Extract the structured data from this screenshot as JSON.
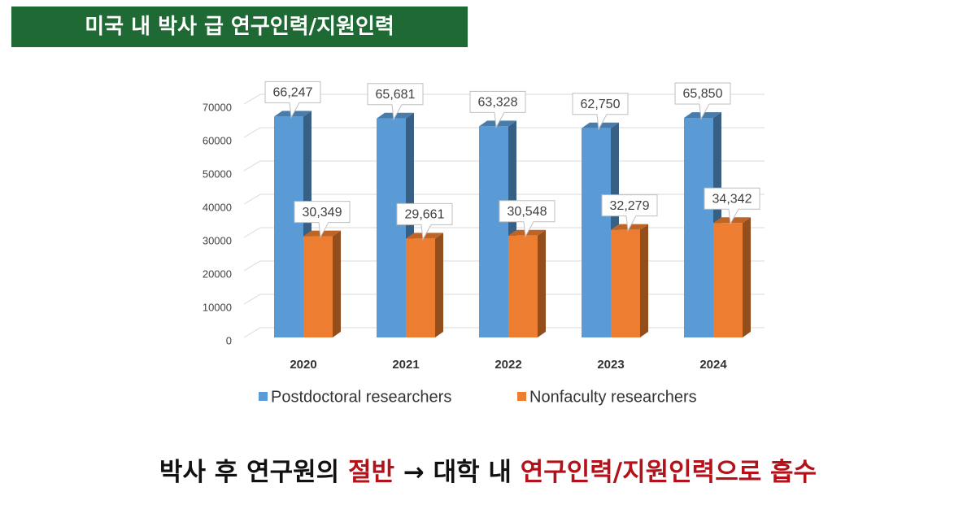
{
  "header": {
    "title": "미국 내 박사 급 연구인력/지원인력"
  },
  "chart_data": {
    "type": "bar3d",
    "categories": [
      "2020",
      "2021",
      "2022",
      "2023",
      "2024"
    ],
    "series": [
      {
        "name": "Postdoctoral researchers",
        "color": "#5b9bd5",
        "values": [
          66247,
          65681,
          63328,
          62750,
          65850
        ],
        "value_labels": [
          "66,247",
          "65,681",
          "63,328",
          "62,750",
          "65,850"
        ]
      },
      {
        "name": "Nonfaculty researchers",
        "color": "#ed7d31",
        "values": [
          30349,
          29661,
          30548,
          32279,
          34342
        ],
        "value_labels": [
          "30,349",
          "29,661",
          "30,548",
          "32,279",
          "34,342"
        ]
      }
    ],
    "ylim": [
      0,
      70000
    ],
    "yticks": [
      0,
      10000,
      20000,
      30000,
      40000,
      50000,
      60000,
      70000
    ],
    "grid": true,
    "legend": "bottom"
  },
  "footer": {
    "parts": [
      "박사 후 연구원의",
      "절반",
      "→ 대학 내",
      "연구인력/지원인력으로 흡수"
    ]
  }
}
